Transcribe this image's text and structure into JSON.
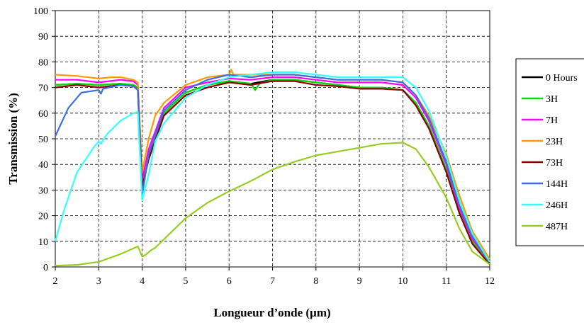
{
  "chart_data": {
    "type": "line",
    "title": "",
    "xlabel": "Longueur d’onde (µm)",
    "ylabel": "Transmission (%)",
    "xlim": [
      2,
      12
    ],
    "ylim": [
      0,
      100
    ],
    "xticks": [
      "2",
      "3",
      "4",
      "5",
      "6",
      "7",
      "8",
      "9",
      "10",
      "11",
      "12"
    ],
    "yticks": [
      "0",
      "10",
      "20",
      "30",
      "40",
      "50",
      "60",
      "70",
      "80",
      "90",
      "100"
    ],
    "grid": true,
    "legend_position": "right",
    "series": [
      {
        "name": "0 Hours",
        "color": "#000000",
        "points": [
          [
            2,
            71
          ],
          [
            2.5,
            71.5
          ],
          [
            3,
            71
          ],
          [
            3.5,
            71.5
          ],
          [
            3.8,
            71
          ],
          [
            3.9,
            70
          ],
          [
            4.0,
            32
          ],
          [
            4.15,
            44
          ],
          [
            4.5,
            60
          ],
          [
            5,
            68
          ],
          [
            5.5,
            71
          ],
          [
            6,
            72.5
          ],
          [
            6.5,
            71.5
          ],
          [
            7,
            73
          ],
          [
            7.5,
            73
          ],
          [
            8,
            72
          ],
          [
            8.5,
            71
          ],
          [
            9,
            70
          ],
          [
            9.5,
            70
          ],
          [
            10,
            69
          ],
          [
            10.3,
            64
          ],
          [
            10.6,
            55
          ],
          [
            11,
            38
          ],
          [
            11.3,
            22
          ],
          [
            11.6,
            10
          ],
          [
            12,
            1
          ]
        ]
      },
      {
        "name": "3H",
        "color": "#00dd00",
        "points": [
          [
            2,
            71
          ],
          [
            2.5,
            71.5
          ],
          [
            3,
            71
          ],
          [
            3.5,
            71.5
          ],
          [
            3.8,
            71
          ],
          [
            3.9,
            70
          ],
          [
            4.0,
            32
          ],
          [
            4.15,
            44
          ],
          [
            4.5,
            60
          ],
          [
            5,
            68
          ],
          [
            5.5,
            71
          ],
          [
            6,
            72.5
          ],
          [
            6.5,
            71.5
          ],
          [
            6.6,
            69
          ],
          [
            6.7,
            71.5
          ],
          [
            7,
            73
          ],
          [
            7.5,
            73
          ],
          [
            8,
            72
          ],
          [
            8.5,
            71
          ],
          [
            9,
            70
          ],
          [
            9.5,
            70
          ],
          [
            10,
            69
          ],
          [
            10.3,
            64
          ],
          [
            10.6,
            55
          ],
          [
            11,
            38
          ],
          [
            11.3,
            22
          ],
          [
            11.6,
            10
          ],
          [
            12,
            1
          ]
        ]
      },
      {
        "name": "7H",
        "color": "#ff00ff",
        "points": [
          [
            2,
            73
          ],
          [
            2.5,
            73
          ],
          [
            3,
            72
          ],
          [
            3.5,
            73
          ],
          [
            3.8,
            72.5
          ],
          [
            3.9,
            71
          ],
          [
            4.0,
            34
          ],
          [
            4.15,
            46
          ],
          [
            4.5,
            62
          ],
          [
            5,
            70
          ],
          [
            5.5,
            72
          ],
          [
            6,
            73.5
          ],
          [
            6.5,
            73
          ],
          [
            7,
            74
          ],
          [
            7.5,
            74
          ],
          [
            8,
            73
          ],
          [
            8.5,
            72
          ],
          [
            9,
            72
          ],
          [
            9.5,
            72
          ],
          [
            10,
            71
          ],
          [
            10.3,
            66
          ],
          [
            10.6,
            57
          ],
          [
            11,
            40
          ],
          [
            11.3,
            23
          ],
          [
            11.6,
            11
          ],
          [
            12,
            2
          ]
        ]
      },
      {
        "name": "23H",
        "color": "#ff9900",
        "points": [
          [
            2,
            75
          ],
          [
            2.5,
            74.5
          ],
          [
            3,
            73.5
          ],
          [
            3.3,
            74
          ],
          [
            3.5,
            74
          ],
          [
            3.8,
            73
          ],
          [
            3.9,
            72
          ],
          [
            4.0,
            37
          ],
          [
            4.15,
            50
          ],
          [
            4.3,
            59
          ],
          [
            4.5,
            64
          ],
          [
            5,
            71
          ],
          [
            5.5,
            74
          ],
          [
            6,
            75
          ],
          [
            6.05,
            77
          ],
          [
            6.1,
            75
          ],
          [
            6.5,
            75
          ],
          [
            7,
            75
          ],
          [
            7.5,
            75
          ],
          [
            8,
            74
          ],
          [
            8.5,
            73
          ],
          [
            9,
            73
          ],
          [
            9.5,
            73
          ],
          [
            10,
            72
          ],
          [
            10.3,
            67
          ],
          [
            10.6,
            59
          ],
          [
            11,
            44
          ],
          [
            11.3,
            28
          ],
          [
            11.6,
            14
          ],
          [
            12,
            3
          ]
        ]
      },
      {
        "name": "73H",
        "color": "#8b0000",
        "points": [
          [
            2,
            70
          ],
          [
            2.5,
            71
          ],
          [
            3,
            70
          ],
          [
            3.5,
            71
          ],
          [
            3.8,
            70.5
          ],
          [
            3.9,
            69
          ],
          [
            4.0,
            31
          ],
          [
            4.15,
            42
          ],
          [
            4.5,
            59
          ],
          [
            5,
            67
          ],
          [
            5.5,
            70
          ],
          [
            6,
            72
          ],
          [
            6.5,
            71
          ],
          [
            7,
            72.5
          ],
          [
            7.5,
            72.5
          ],
          [
            8,
            71
          ],
          [
            8.5,
            70.5
          ],
          [
            9,
            69.5
          ],
          [
            9.5,
            69.5
          ],
          [
            10,
            69
          ],
          [
            10.3,
            63
          ],
          [
            10.6,
            54
          ],
          [
            11,
            37
          ],
          [
            11.3,
            21
          ],
          [
            11.6,
            9
          ],
          [
            12,
            1
          ]
        ]
      },
      {
        "name": "144H",
        "color": "#3a6fe0",
        "points": [
          [
            2,
            51
          ],
          [
            2.3,
            62
          ],
          [
            2.6,
            68
          ],
          [
            3,
            69
          ],
          [
            3.05,
            67.5
          ],
          [
            3.1,
            69.5
          ],
          [
            3.5,
            71
          ],
          [
            3.8,
            70.5
          ],
          [
            3.9,
            69
          ],
          [
            4.0,
            28
          ],
          [
            4.15,
            44
          ],
          [
            4.5,
            61
          ],
          [
            5,
            69
          ],
          [
            5.5,
            73
          ],
          [
            6,
            75
          ],
          [
            6.5,
            74
          ],
          [
            7,
            75
          ],
          [
            7.5,
            75
          ],
          [
            8,
            74
          ],
          [
            8.5,
            73
          ],
          [
            9,
            73
          ],
          [
            9.5,
            73
          ],
          [
            10,
            72
          ],
          [
            10.3,
            67
          ],
          [
            10.6,
            58
          ],
          [
            11,
            41
          ],
          [
            11.3,
            24
          ],
          [
            11.6,
            12
          ],
          [
            12,
            2
          ]
        ]
      },
      {
        "name": "246H",
        "color": "#33ffff",
        "points": [
          [
            2,
            10
          ],
          [
            2.2,
            22
          ],
          [
            2.5,
            37
          ],
          [
            2.9,
            47
          ],
          [
            3.0,
            49
          ],
          [
            3.05,
            48
          ],
          [
            3.2,
            52
          ],
          [
            3.5,
            57
          ],
          [
            3.8,
            60
          ],
          [
            3.9,
            60.5
          ],
          [
            4.0,
            26
          ],
          [
            4.15,
            36
          ],
          [
            4.3,
            49
          ],
          [
            4.5,
            56
          ],
          [
            5,
            66
          ],
          [
            5.5,
            71
          ],
          [
            6,
            74
          ],
          [
            6.5,
            75
          ],
          [
            7,
            76
          ],
          [
            7.5,
            76
          ],
          [
            8,
            75
          ],
          [
            8.5,
            74
          ],
          [
            9,
            74
          ],
          [
            9.5,
            74
          ],
          [
            10,
            74
          ],
          [
            10.3,
            70
          ],
          [
            10.6,
            61
          ],
          [
            11,
            43
          ],
          [
            11.3,
            26
          ],
          [
            11.6,
            13
          ],
          [
            12,
            2
          ]
        ]
      },
      {
        "name": "487H",
        "color": "#99cc22",
        "points": [
          [
            2,
            0.5
          ],
          [
            2.5,
            0.8
          ],
          [
            3,
            2
          ],
          [
            3.5,
            5
          ],
          [
            3.9,
            8
          ],
          [
            4.0,
            4
          ],
          [
            4.1,
            5
          ],
          [
            4.2,
            6.5
          ],
          [
            4.3,
            7.5
          ],
          [
            5,
            19
          ],
          [
            5.5,
            25
          ],
          [
            6,
            29.5
          ],
          [
            6.5,
            33.5
          ],
          [
            7,
            38
          ],
          [
            7.5,
            41
          ],
          [
            8,
            43.5
          ],
          [
            8.5,
            45
          ],
          [
            9,
            46.5
          ],
          [
            9.5,
            48
          ],
          [
            10,
            48.5
          ],
          [
            10.3,
            46
          ],
          [
            10.6,
            39
          ],
          [
            11,
            27
          ],
          [
            11.3,
            15
          ],
          [
            11.6,
            6
          ],
          [
            12,
            1
          ]
        ]
      }
    ]
  }
}
